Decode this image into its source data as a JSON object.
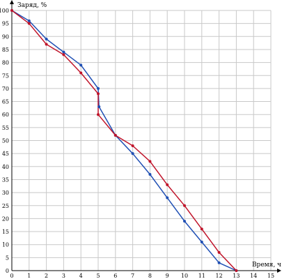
{
  "chart_data": {
    "type": "line",
    "title": "",
    "xlabel": "Время, ч",
    "ylabel": "Заряд, %",
    "xlim": [
      0,
      15
    ],
    "ylim": [
      0,
      100
    ],
    "x_ticks": [
      0,
      1,
      2,
      3,
      4,
      5,
      6,
      7,
      8,
      9,
      10,
      11,
      12,
      13,
      14,
      15
    ],
    "y_ticks": [
      0,
      5,
      10,
      15,
      20,
      25,
      30,
      35,
      40,
      45,
      50,
      55,
      60,
      65,
      70,
      75,
      80,
      85,
      90,
      95,
      100
    ],
    "grid": true,
    "legend": "none",
    "series": [
      {
        "color": "#1f4fb4",
        "points": [
          [
            0,
            100
          ],
          [
            1,
            96
          ],
          [
            2,
            89
          ],
          [
            3,
            84
          ],
          [
            4,
            79
          ],
          [
            5,
            70
          ],
          [
            5.05,
            63
          ],
          [
            6,
            52
          ],
          [
            7,
            45
          ],
          [
            8,
            37
          ],
          [
            9,
            28
          ],
          [
            10,
            19
          ],
          [
            11,
            11
          ],
          [
            12,
            3
          ],
          [
            13,
            0
          ]
        ]
      },
      {
        "color": "#c0142a",
        "points": [
          [
            0,
            100
          ],
          [
            1,
            95
          ],
          [
            2,
            87
          ],
          [
            3,
            83
          ],
          [
            4,
            76
          ],
          [
            5,
            68
          ],
          [
            5,
            60
          ],
          [
            6,
            52
          ],
          [
            7,
            48
          ],
          [
            8,
            42
          ],
          [
            9,
            33
          ],
          [
            10,
            25
          ],
          [
            11,
            16
          ],
          [
            12,
            7
          ],
          [
            13,
            0
          ]
        ]
      }
    ]
  }
}
